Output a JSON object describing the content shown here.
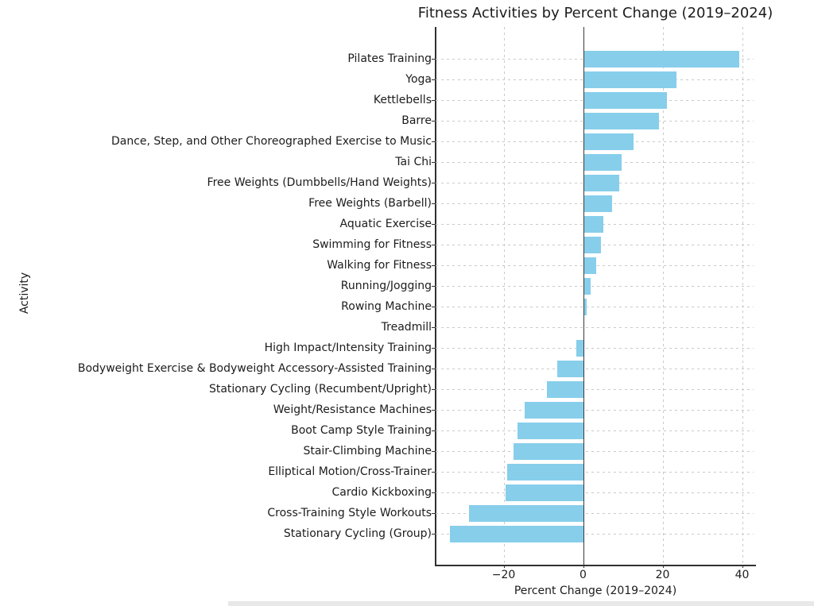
{
  "chart_data": {
    "type": "bar",
    "orientation": "horizontal",
    "title": "Fitness Activities by Percent Change (2019–2024)",
    "xlabel": "Percent Change (2019–2024)",
    "ylabel": "Activity",
    "xlim": [
      -37.1,
      43.3
    ],
    "xticks": [
      -20,
      0,
      20,
      40
    ],
    "xtick_labels": [
      "−20",
      "0",
      "20",
      "40"
    ],
    "grid": "dashed",
    "legend": "none",
    "bar_color": "#87CEEB",
    "categories": [
      "Pilates Training",
      "Yoga",
      "Kettlebells",
      "Barre",
      "Dance, Step, and Other Choreographed Exercise to Music",
      "Tai Chi",
      "Free Weights (Dumbbells/Hand Weights)",
      "Free Weights (Barbell)",
      "Aquatic Exercise",
      "Swimming for Fitness",
      "Walking for Fitness",
      "Running/Jogging",
      "Rowing Machine",
      "Treadmill",
      "High Impact/Intensity Training",
      "Bodyweight Exercise & Bodyweight Accessory-Assisted Training",
      "Stationary Cycling (Recumbent/Upright)",
      "Weight/Resistance Machines",
      "Boot Camp Style Training",
      "Stair-Climbing Machine",
      "Elliptical Motion/Cross-Trainer",
      "Cardio Kickboxing",
      "Cross-Training Style Workouts",
      "Stationary Cycling (Group)"
    ],
    "values": [
      39.2,
      23.4,
      21.1,
      19.1,
      12.7,
      9.7,
      9.1,
      7.3,
      5.1,
      4.4,
      3.3,
      1.9,
      0.9,
      0.0,
      -1.8,
      -6.5,
      -9.1,
      -14.7,
      -16.5,
      -17.5,
      -19.2,
      -19.5,
      -28.8,
      -33.5
    ]
  }
}
